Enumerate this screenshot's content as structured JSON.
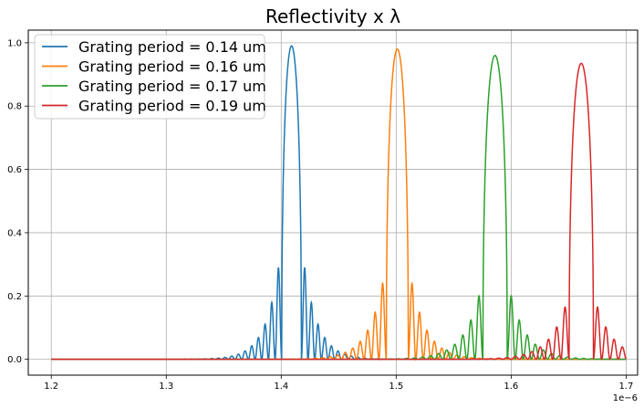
{
  "chart_data": {
    "type": "line",
    "title": "Reflectivity x λ",
    "xlabel": "",
    "ylabel": "",
    "x_offset_label": "1e−6",
    "xlim": [
      1.18,
      1.71
    ],
    "ylim": [
      -0.05,
      1.04
    ],
    "x_ticks": [
      1.2,
      1.3,
      1.4,
      1.5,
      1.6,
      1.7
    ],
    "y_ticks": [
      0.0,
      0.2,
      0.4,
      0.6,
      0.8,
      1.0
    ],
    "x_tick_labels": [
      "1.2",
      "1.3",
      "1.4",
      "1.5",
      "1.6",
      "1.7"
    ],
    "y_tick_labels": [
      "0.0",
      "0.2",
      "0.4",
      "0.6",
      "0.8",
      "1.0"
    ],
    "grid": true,
    "legend_position": "top-left",
    "series": [
      {
        "name": "Grating period =  0.14 um",
        "color": "#1f77b4",
        "center": 1.409,
        "peak": 0.99,
        "halfwidth": 0.0085,
        "sidelobe": 0.29,
        "spacing": 0.0058
      },
      {
        "name": "Grating period =  0.16 um",
        "color": "#ff7f0e",
        "center": 1.501,
        "peak": 0.98,
        "halfwidth": 0.0095,
        "sidelobe": 0.24,
        "spacing": 0.0065
      },
      {
        "name": "Grating period =  0.17 um",
        "color": "#2ca02c",
        "center": 1.586,
        "peak": 0.96,
        "halfwidth": 0.0105,
        "sidelobe": 0.2,
        "spacing": 0.007
      },
      {
        "name": "Grating period =  0.19 um",
        "color": "#d62728",
        "center": 1.661,
        "peak": 0.935,
        "halfwidth": 0.0105,
        "sidelobe": 0.165,
        "spacing": 0.0072
      }
    ]
  }
}
